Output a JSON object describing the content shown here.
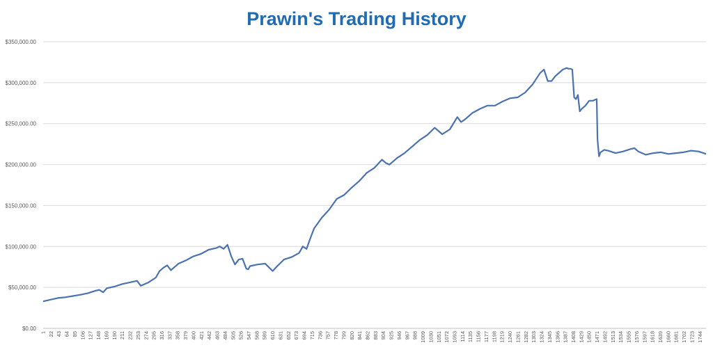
{
  "chart_data": {
    "type": "line",
    "title": "Prawin's Trading History",
    "xlabel": "",
    "ylabel": "",
    "ylim": [
      0,
      350000
    ],
    "xlim": [
      1,
      1760
    ],
    "y_ticks": [
      "$0.00",
      "$50,000.00",
      "$100,000.00",
      "$150,000.00",
      "$200,000.00",
      "$250,000.00",
      "$300,000.00",
      "$350,000.00"
    ],
    "y_tick_values": [
      0,
      50000,
      100000,
      150000,
      200000,
      250000,
      300000,
      350000
    ],
    "x_ticks": [
      "1",
      "22",
      "43",
      "64",
      "85",
      "106",
      "127",
      "148",
      "169",
      "190",
      "211",
      "232",
      "253",
      "274",
      "295",
      "316",
      "337",
      "358",
      "379",
      "400",
      "421",
      "442",
      "463",
      "484",
      "505",
      "526",
      "547",
      "568",
      "589",
      "610",
      "631",
      "652",
      "673",
      "694",
      "715",
      "736",
      "757",
      "778",
      "799",
      "820",
      "841",
      "862",
      "883",
      "904",
      "925",
      "946",
      "967",
      "988",
      "1009",
      "1030",
      "1051",
      "1072",
      "1093",
      "1114",
      "1135",
      "1156",
      "1177",
      "1198",
      "1219",
      "1240",
      "1261",
      "1282",
      "1303",
      "1324",
      "1345",
      "1366",
      "1387",
      "1408",
      "1429",
      "1450",
      "1471",
      "1492",
      "1513",
      "1534",
      "1555",
      "1576",
      "1597",
      "1618",
      "1639",
      "1660",
      "1681",
      "1702",
      "1723",
      "1744"
    ],
    "grid": true,
    "line_color": "#4a72b0",
    "title_color": "#1f6cb5",
    "series": [
      {
        "x": [
          1,
          20,
          40,
          60,
          80,
          100,
          120,
          140,
          150,
          160,
          170,
          190,
          210,
          230,
          250,
          260,
          280,
          300,
          310,
          320,
          330,
          340,
          350,
          360,
          380,
          400,
          420,
          440,
          460,
          470,
          480,
          490,
          500,
          510,
          520,
          530,
          540,
          545,
          550,
          570,
          590,
          610,
          620,
          640,
          660,
          680,
          690,
          700,
          710,
          720,
          740,
          760,
          780,
          800,
          820,
          840,
          860,
          880,
          900,
          910,
          920,
          940,
          960,
          980,
          1000,
          1020,
          1040,
          1060,
          1080,
          1100,
          1110,
          1120,
          1140,
          1160,
          1180,
          1200,
          1220,
          1240,
          1260,
          1280,
          1300,
          1320,
          1330,
          1340,
          1350,
          1360,
          1380,
          1390,
          1395,
          1400,
          1405,
          1410,
          1415,
          1420,
          1425,
          1430,
          1440,
          1450,
          1460,
          1470,
          1472,
          1476,
          1480,
          1490,
          1500,
          1520,
          1540,
          1560,
          1570,
          1580,
          1600,
          1620,
          1640,
          1660,
          1680,
          1700,
          1720,
          1740,
          1760
        ],
        "y": [
          33000,
          35000,
          37000,
          38000,
          39500,
          41000,
          43000,
          46000,
          47000,
          44000,
          49000,
          51000,
          54000,
          56000,
          58000,
          52000,
          56000,
          62000,
          70000,
          74000,
          77000,
          71000,
          75000,
          79000,
          83000,
          88000,
          91000,
          96000,
          98000,
          100000,
          97000,
          102000,
          88000,
          78000,
          84000,
          85000,
          73000,
          72000,
          76000,
          78000,
          79000,
          70000,
          75000,
          84000,
          87000,
          92000,
          100000,
          97000,
          110000,
          122000,
          135000,
          145000,
          158000,
          163000,
          172000,
          180000,
          190000,
          196000,
          206000,
          202000,
          200000,
          208000,
          214000,
          222000,
          230000,
          236000,
          245000,
          237000,
          243000,
          258000,
          252000,
          255000,
          263000,
          268000,
          272000,
          272000,
          277000,
          281000,
          282000,
          288000,
          298000,
          312000,
          316000,
          302000,
          302000,
          308000,
          316000,
          318000,
          317000,
          317000,
          316000,
          282000,
          280000,
          285000,
          265000,
          268000,
          272000,
          278000,
          278000,
          280000,
          231000,
          210000,
          215000,
          218000,
          217000,
          214000,
          216000,
          219000,
          220000,
          216000,
          212000,
          214000,
          215000,
          213000,
          214000,
          215000,
          217000,
          216000,
          213000
        ]
      }
    ]
  }
}
